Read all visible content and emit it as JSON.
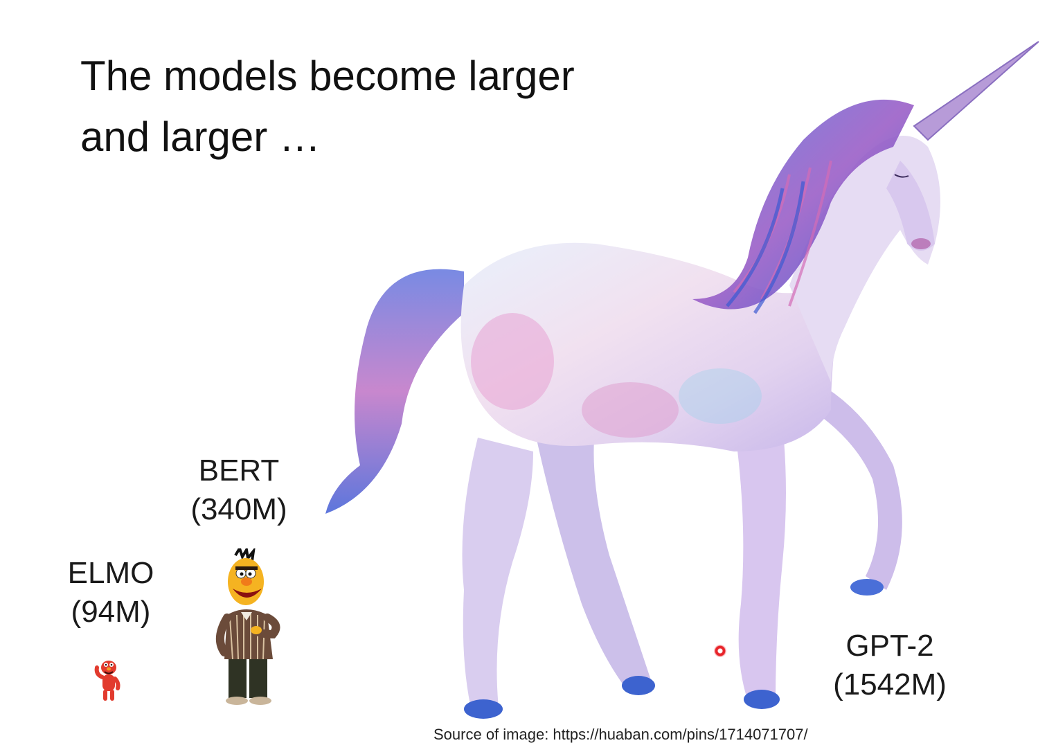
{
  "slide": {
    "title_line1": "The models become larger",
    "title_line2": "and larger …",
    "models": [
      {
        "name": "ELMO",
        "size": "(94M)"
      },
      {
        "name": "BERT",
        "size": "(340M)"
      },
      {
        "name": "GPT-2",
        "size": "(1542M)"
      }
    ],
    "source": "Source of image: https://huaban.com/pins/1714071707/"
  },
  "colors": {
    "elmo": "#e23b2e",
    "bert_face": "#f5b321",
    "unicorn_body": "#e6dcf3",
    "unicorn_mane": "#5a6fd6",
    "unicorn_pink": "#d98ac4",
    "pointer": "#e8242a"
  },
  "icons": {
    "elmo": "elmo-figure",
    "bert": "bert-figure",
    "gpt2": "unicorn-figure",
    "pointer": "laser-pointer-dot"
  }
}
